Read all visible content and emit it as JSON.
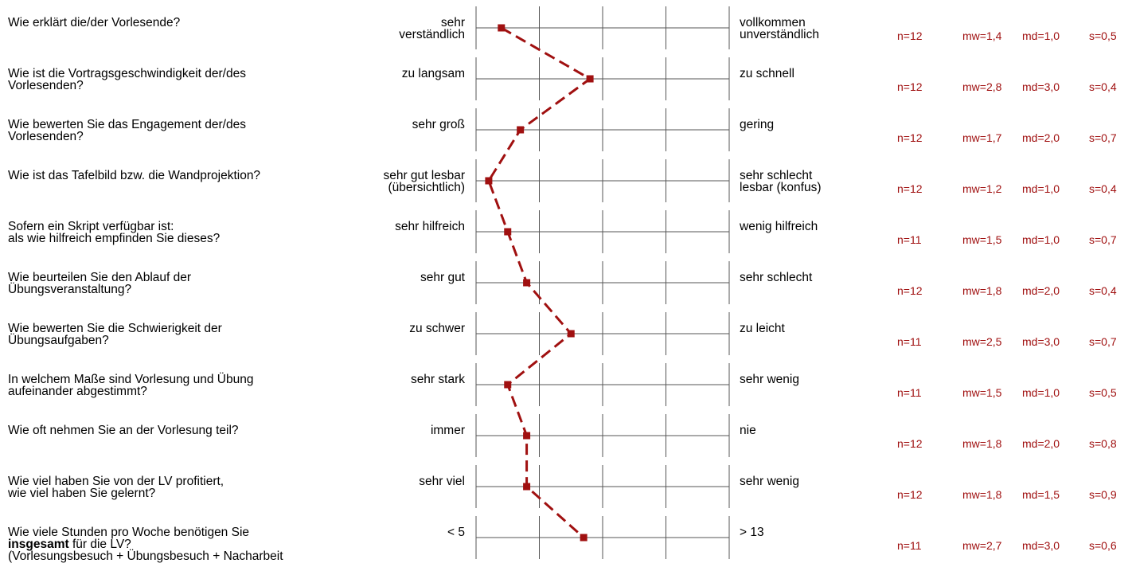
{
  "colors": {
    "series": "#a01010",
    "grid": "#555555",
    "stat_text": "#a01010"
  },
  "chart_data": {
    "type": "line",
    "xlim": [
      1,
      5
    ],
    "xlabel": "",
    "ylabel": "",
    "grid": true,
    "categories": [
      "Wie erklärt die/der Vorlesende?",
      "Wie ist die Vortragsgeschwindigkeit der/des Vorlesenden?",
      "Wie bewerten Sie das Engagement der/des Vorlesenden?",
      "Wie ist das Tafelbild bzw. die Wandprojektion?",
      "Sofern ein Skript verfügbar ist: als wie hilfreich empfinden Sie dieses?",
      "Wie beurteilen Sie den Ablauf der Übungsveranstaltung?",
      "Wie bewerten Sie die Schwierigkeit der Übungsaufgaben?",
      "In welchem Maße sind Vorlesung und Übung aufeinander abgestimmt?",
      "Wie oft nehmen Sie an der Vorlesung teil?",
      "Wie viel haben Sie von der LV profitiert, wie viel haben Sie gelernt?",
      "Wie viele Stunden pro Woche benötigen Sie insgesamt für die LV? (Vorlesungsbesuch + Übungsbesuch + Nacharbeit"
    ],
    "series": [
      {
        "values": [
          1.4,
          2.8,
          1.7,
          1.2,
          1.5,
          1.8,
          2.5,
          1.5,
          1.8,
          1.8,
          2.7
        ]
      }
    ]
  },
  "rows": [
    {
      "q": [
        "Wie erklärt die/der Vorlesende?"
      ],
      "left": [
        "sehr",
        "verständlich"
      ],
      "right": [
        "vollkommen",
        "unverständlich"
      ],
      "n": "n=12",
      "mw": "mw=1,4",
      "md": "md=1,0",
      "s": "s=0,5"
    },
    {
      "q": [
        "Wie ist die Vortragsgeschwindigkeit der/des",
        "Vorlesenden?"
      ],
      "left": [
        "zu langsam"
      ],
      "right": [
        "zu schnell"
      ],
      "n": "n=12",
      "mw": "mw=2,8",
      "md": "md=3,0",
      "s": "s=0,4"
    },
    {
      "q": [
        "Wie bewerten Sie das Engagement der/des",
        "Vorlesenden?"
      ],
      "left": [
        "sehr groß"
      ],
      "right": [
        "gering"
      ],
      "n": "n=12",
      "mw": "mw=1,7",
      "md": "md=2,0",
      "s": "s=0,7"
    },
    {
      "q": [
        "Wie ist das Tafelbild bzw. die Wandprojektion?"
      ],
      "left": [
        "sehr gut lesbar",
        "(übersichtlich)"
      ],
      "right": [
        "sehr schlecht",
        "lesbar (konfus)"
      ],
      "n": "n=12",
      "mw": "mw=1,2",
      "md": "md=1,0",
      "s": "s=0,4"
    },
    {
      "q": [
        "Sofern ein Skript verfügbar ist:",
        "als wie hilfreich empfinden Sie dieses?"
      ],
      "left": [
        "sehr hilfreich"
      ],
      "right": [
        "wenig hilfreich"
      ],
      "n": "n=11",
      "mw": "mw=1,5",
      "md": "md=1,0",
      "s": "s=0,7"
    },
    {
      "q": [
        "Wie beurteilen Sie den Ablauf der",
        "Übungsveranstaltung?"
      ],
      "left": [
        "sehr gut"
      ],
      "right": [
        "sehr schlecht"
      ],
      "n": "n=12",
      "mw": "mw=1,8",
      "md": "md=2,0",
      "s": "s=0,4"
    },
    {
      "q": [
        "Wie bewerten Sie die Schwierigkeit der",
        "Übungsaufgaben?"
      ],
      "left": [
        "zu schwer"
      ],
      "right": [
        "zu leicht"
      ],
      "n": "n=11",
      "mw": "mw=2,5",
      "md": "md=3,0",
      "s": "s=0,7"
    },
    {
      "q": [
        "In welchem Maße sind Vorlesung und Übung",
        "aufeinander abgestimmt?"
      ],
      "left": [
        "sehr stark"
      ],
      "right": [
        "sehr wenig"
      ],
      "n": "n=11",
      "mw": "mw=1,5",
      "md": "md=1,0",
      "s": "s=0,5"
    },
    {
      "q": [
        "Wie oft nehmen Sie an der Vorlesung teil?"
      ],
      "left": [
        "immer"
      ],
      "right": [
        "nie"
      ],
      "n": "n=12",
      "mw": "mw=1,8",
      "md": "md=2,0",
      "s": "s=0,8"
    },
    {
      "q": [
        "Wie viel haben Sie von der LV profitiert,",
        "wie viel haben Sie gelernt?"
      ],
      "left": [
        "sehr viel"
      ],
      "right": [
        "sehr wenig"
      ],
      "n": "n=12",
      "mw": "mw=1,8",
      "md": "md=1,5",
      "s": "s=0,9"
    },
    {
      "q": [
        "Wie viele Stunden pro Woche benötigen Sie"
      ],
      "q_bold": "insgesamt",
      "q_rest": " für die LV?",
      "q_extra": [
        "(Vorlesungsbesuch + Übungsbesuch + Nacharbeit"
      ],
      "left": [
        "< 5"
      ],
      "right": [
        "> 13"
      ],
      "n": "n=11",
      "mw": "mw=2,7",
      "md": "md=3,0",
      "s": "s=0,6"
    }
  ]
}
